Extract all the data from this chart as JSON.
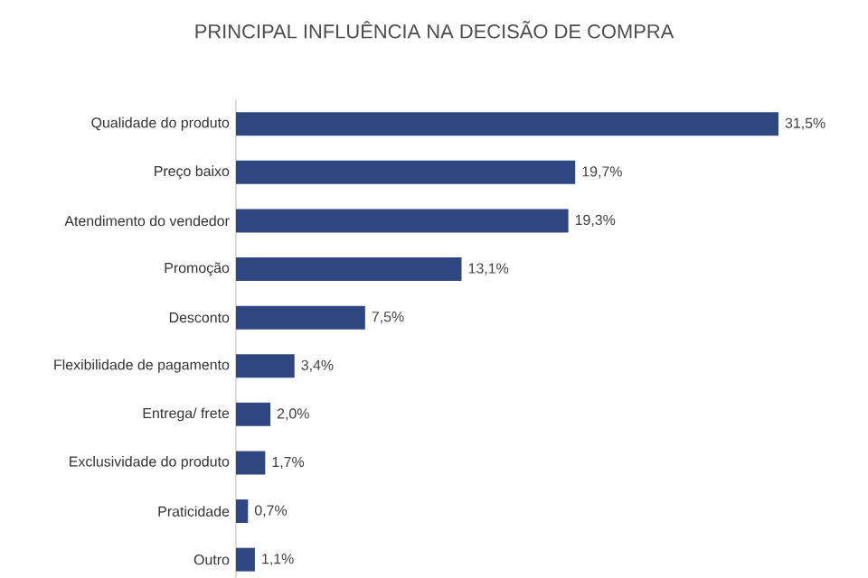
{
  "chart_data": {
    "type": "bar",
    "orientation": "horizontal",
    "title": "PRINCIPAL INFLUÊNCIA NA DECISÃO DE COMPRA",
    "categories": [
      "Qualidade do produto",
      "Preço baixo",
      "Atendimento do vendedor",
      "Promoção",
      "Desconto",
      "Flexibilidade de pagamento",
      "Entrega/ frete",
      "Exclusividade do produto",
      "Praticidade",
      "Outro"
    ],
    "values": [
      31.5,
      19.7,
      19.3,
      13.1,
      7.5,
      3.4,
      2.0,
      1.7,
      0.7,
      1.1
    ],
    "value_labels": [
      "31,5%",
      "19,7%",
      "19,3%",
      "13,1%",
      "7,5%",
      "3,4%",
      "2,0%",
      "1,7%",
      "0,7%",
      "1,1%"
    ],
    "color": "#2e4780"
  }
}
